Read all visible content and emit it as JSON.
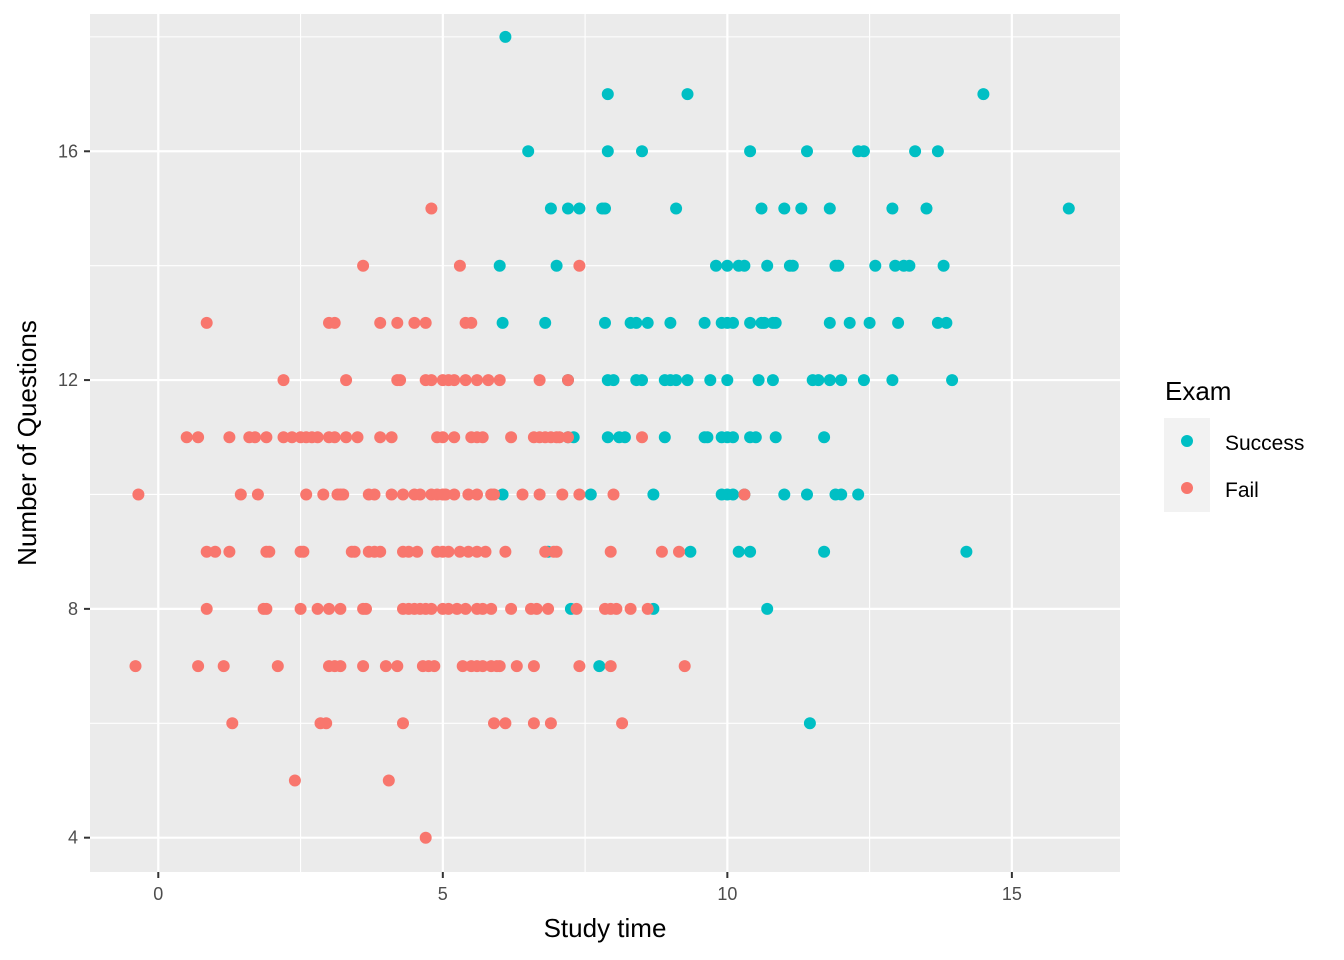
{
  "chart_data": {
    "type": "scatter",
    "xlabel": "Study time",
    "ylabel": "Number of Questions",
    "xlim": [
      -1.2,
      16.9
    ],
    "ylim": [
      3.4,
      18.4
    ],
    "x_ticks": [
      0,
      5,
      10,
      15
    ],
    "y_ticks": [
      4,
      8,
      12,
      16
    ],
    "grid": true,
    "legend": {
      "title": "Exam",
      "position": "right",
      "entries": [
        {
          "name": "Success",
          "color": "#00BFC4"
        },
        {
          "name": "Fail",
          "color": "#F8766D"
        }
      ]
    },
    "series": [
      {
        "name": "Success",
        "color": "#00BFC4",
        "points": [
          [
            6.1,
            18
          ],
          [
            7.9,
            17
          ],
          [
            9.3,
            17
          ],
          [
            14.5,
            17
          ],
          [
            6.5,
            16
          ],
          [
            7.9,
            16
          ],
          [
            8.5,
            16
          ],
          [
            10.4,
            16
          ],
          [
            11.4,
            16
          ],
          [
            12.3,
            16
          ],
          [
            12.4,
            16
          ],
          [
            13.3,
            16
          ],
          [
            13.7,
            16
          ],
          [
            6.9,
            15
          ],
          [
            7.2,
            15
          ],
          [
            7.4,
            15
          ],
          [
            7.8,
            15
          ],
          [
            7.85,
            15
          ],
          [
            9.1,
            15
          ],
          [
            10.6,
            15
          ],
          [
            11.0,
            15
          ],
          [
            11.3,
            15
          ],
          [
            11.8,
            15
          ],
          [
            12.9,
            15
          ],
          [
            13.5,
            15
          ],
          [
            16.0,
            15
          ],
          [
            6.0,
            14
          ],
          [
            7.0,
            14
          ],
          [
            9.8,
            14
          ],
          [
            10.0,
            14
          ],
          [
            10.2,
            14
          ],
          [
            10.3,
            14
          ],
          [
            10.7,
            14
          ],
          [
            11.1,
            14
          ],
          [
            11.15,
            14
          ],
          [
            11.9,
            14
          ],
          [
            11.95,
            14
          ],
          [
            12.6,
            14
          ],
          [
            12.95,
            14
          ],
          [
            13.1,
            14
          ],
          [
            13.2,
            14
          ],
          [
            13.8,
            14
          ],
          [
            6.05,
            13
          ],
          [
            6.8,
            13
          ],
          [
            7.85,
            13
          ],
          [
            8.3,
            13
          ],
          [
            8.4,
            13
          ],
          [
            8.6,
            13
          ],
          [
            9.0,
            13
          ],
          [
            9.6,
            13
          ],
          [
            9.9,
            13
          ],
          [
            10.0,
            13
          ],
          [
            10.1,
            13
          ],
          [
            10.4,
            13
          ],
          [
            10.6,
            13
          ],
          [
            10.65,
            13
          ],
          [
            10.8,
            13
          ],
          [
            10.85,
            13
          ],
          [
            11.8,
            13
          ],
          [
            12.15,
            13
          ],
          [
            12.5,
            13
          ],
          [
            13.0,
            13
          ],
          [
            13.7,
            13
          ],
          [
            13.85,
            13
          ],
          [
            7.2,
            12
          ],
          [
            7.9,
            12
          ],
          [
            8.0,
            12
          ],
          [
            8.4,
            12
          ],
          [
            8.5,
            12
          ],
          [
            8.9,
            12
          ],
          [
            9.0,
            12
          ],
          [
            9.1,
            12
          ],
          [
            9.3,
            12
          ],
          [
            9.7,
            12
          ],
          [
            10.0,
            12
          ],
          [
            10.55,
            12
          ],
          [
            10.8,
            12
          ],
          [
            11.5,
            12
          ],
          [
            11.6,
            12
          ],
          [
            11.8,
            12
          ],
          [
            12.0,
            12
          ],
          [
            12.4,
            12
          ],
          [
            12.9,
            12
          ],
          [
            13.95,
            12
          ],
          [
            7.2,
            11
          ],
          [
            7.3,
            11
          ],
          [
            7.9,
            11
          ],
          [
            8.1,
            11
          ],
          [
            8.2,
            11
          ],
          [
            8.9,
            11
          ],
          [
            9.6,
            11
          ],
          [
            9.65,
            11
          ],
          [
            9.9,
            11
          ],
          [
            10.0,
            11
          ],
          [
            10.1,
            11
          ],
          [
            10.4,
            11
          ],
          [
            10.5,
            11
          ],
          [
            10.85,
            11
          ],
          [
            11.7,
            11
          ],
          [
            6.05,
            10
          ],
          [
            7.6,
            10
          ],
          [
            8.7,
            10
          ],
          [
            9.9,
            10
          ],
          [
            10.0,
            10
          ],
          [
            10.1,
            10
          ],
          [
            10.3,
            10
          ],
          [
            11.0,
            10
          ],
          [
            11.4,
            10
          ],
          [
            11.9,
            10
          ],
          [
            12.0,
            10
          ],
          [
            12.3,
            10
          ],
          [
            6.85,
            9
          ],
          [
            9.35,
            9
          ],
          [
            10.2,
            9
          ],
          [
            10.4,
            9
          ],
          [
            11.7,
            9
          ],
          [
            14.2,
            9
          ],
          [
            7.25,
            8
          ],
          [
            8.7,
            8
          ],
          [
            10.7,
            8
          ],
          [
            7.75,
            7
          ],
          [
            11.45,
            6
          ]
        ]
      },
      {
        "name": "Fail",
        "color": "#F8766D",
        "points": [
          [
            4.8,
            15
          ],
          [
            3.6,
            14
          ],
          [
            5.3,
            14
          ],
          [
            7.4,
            14
          ],
          [
            0.85,
            13
          ],
          [
            3.0,
            13
          ],
          [
            3.1,
            13
          ],
          [
            3.9,
            13
          ],
          [
            4.2,
            13
          ],
          [
            4.5,
            13
          ],
          [
            4.7,
            13
          ],
          [
            5.4,
            13
          ],
          [
            5.5,
            13
          ],
          [
            2.2,
            12
          ],
          [
            3.3,
            12
          ],
          [
            4.2,
            12
          ],
          [
            4.25,
            12
          ],
          [
            4.7,
            12
          ],
          [
            4.8,
            12
          ],
          [
            5.0,
            12
          ],
          [
            5.1,
            12
          ],
          [
            5.2,
            12
          ],
          [
            5.4,
            12
          ],
          [
            5.6,
            12
          ],
          [
            5.8,
            12
          ],
          [
            6.0,
            12
          ],
          [
            6.7,
            12
          ],
          [
            7.2,
            12
          ],
          [
            0.5,
            11
          ],
          [
            0.7,
            11
          ],
          [
            1.25,
            11
          ],
          [
            1.6,
            11
          ],
          [
            1.7,
            11
          ],
          [
            1.9,
            11
          ],
          [
            2.2,
            11
          ],
          [
            2.35,
            11
          ],
          [
            2.5,
            11
          ],
          [
            2.6,
            11
          ],
          [
            2.7,
            11
          ],
          [
            2.8,
            11
          ],
          [
            3.0,
            11
          ],
          [
            3.1,
            11
          ],
          [
            3.3,
            11
          ],
          [
            3.5,
            11
          ],
          [
            3.9,
            11
          ],
          [
            4.1,
            11
          ],
          [
            4.9,
            11
          ],
          [
            5.0,
            11
          ],
          [
            5.2,
            11
          ],
          [
            5.5,
            11
          ],
          [
            5.6,
            11
          ],
          [
            5.7,
            11
          ],
          [
            6.2,
            11
          ],
          [
            6.6,
            11
          ],
          [
            6.7,
            11
          ],
          [
            6.8,
            11
          ],
          [
            6.9,
            11
          ],
          [
            7.0,
            11
          ],
          [
            7.05,
            11
          ],
          [
            7.2,
            11
          ],
          [
            8.5,
            11
          ],
          [
            -0.35,
            10
          ],
          [
            1.45,
            10
          ],
          [
            1.75,
            10
          ],
          [
            2.6,
            10
          ],
          [
            2.9,
            10
          ],
          [
            3.15,
            10
          ],
          [
            3.2,
            10
          ],
          [
            3.25,
            10
          ],
          [
            3.7,
            10
          ],
          [
            3.8,
            10
          ],
          [
            4.1,
            10
          ],
          [
            4.3,
            10
          ],
          [
            4.5,
            10
          ],
          [
            4.6,
            10
          ],
          [
            4.8,
            10
          ],
          [
            4.9,
            10
          ],
          [
            5.0,
            10
          ],
          [
            5.05,
            10
          ],
          [
            5.2,
            10
          ],
          [
            5.45,
            10
          ],
          [
            5.6,
            10
          ],
          [
            5.85,
            10
          ],
          [
            5.9,
            10
          ],
          [
            6.4,
            10
          ],
          [
            6.7,
            10
          ],
          [
            7.1,
            10
          ],
          [
            7.4,
            10
          ],
          [
            8.0,
            10
          ],
          [
            10.3,
            10
          ],
          [
            0.85,
            9
          ],
          [
            1.0,
            9
          ],
          [
            1.25,
            9
          ],
          [
            1.9,
            9
          ],
          [
            1.95,
            9
          ],
          [
            2.5,
            9
          ],
          [
            2.55,
            9
          ],
          [
            3.4,
            9
          ],
          [
            3.45,
            9
          ],
          [
            3.7,
            9
          ],
          [
            3.8,
            9
          ],
          [
            3.9,
            9
          ],
          [
            4.3,
            9
          ],
          [
            4.4,
            9
          ],
          [
            4.55,
            9
          ],
          [
            4.9,
            9
          ],
          [
            5.0,
            9
          ],
          [
            5.1,
            9
          ],
          [
            5.3,
            9
          ],
          [
            5.45,
            9
          ],
          [
            5.6,
            9
          ],
          [
            5.75,
            9
          ],
          [
            6.1,
            9
          ],
          [
            6.8,
            9
          ],
          [
            6.95,
            9
          ],
          [
            7.0,
            9
          ],
          [
            7.95,
            9
          ],
          [
            8.85,
            9
          ],
          [
            9.15,
            9
          ],
          [
            0.85,
            8
          ],
          [
            1.85,
            8
          ],
          [
            1.9,
            8
          ],
          [
            2.5,
            8
          ],
          [
            2.8,
            8
          ],
          [
            3.0,
            8
          ],
          [
            3.2,
            8
          ],
          [
            3.6,
            8
          ],
          [
            3.65,
            8
          ],
          [
            4.3,
            8
          ],
          [
            4.4,
            8
          ],
          [
            4.5,
            8
          ],
          [
            4.6,
            8
          ],
          [
            4.7,
            8
          ],
          [
            4.8,
            8
          ],
          [
            5.0,
            8
          ],
          [
            5.1,
            8
          ],
          [
            5.25,
            8
          ],
          [
            5.4,
            8
          ],
          [
            5.6,
            8
          ],
          [
            5.7,
            8
          ],
          [
            5.85,
            8
          ],
          [
            6.2,
            8
          ],
          [
            6.55,
            8
          ],
          [
            6.65,
            8
          ],
          [
            6.85,
            8
          ],
          [
            7.35,
            8
          ],
          [
            7.85,
            8
          ],
          [
            7.95,
            8
          ],
          [
            8.05,
            8
          ],
          [
            8.3,
            8
          ],
          [
            8.6,
            8
          ],
          [
            -0.4,
            7
          ],
          [
            0.7,
            7
          ],
          [
            1.15,
            7
          ],
          [
            2.1,
            7
          ],
          [
            3.0,
            7
          ],
          [
            3.1,
            7
          ],
          [
            3.2,
            7
          ],
          [
            3.6,
            7
          ],
          [
            4.0,
            7
          ],
          [
            4.2,
            7
          ],
          [
            4.65,
            7
          ],
          [
            4.75,
            7
          ],
          [
            4.85,
            7
          ],
          [
            5.35,
            7
          ],
          [
            5.5,
            7
          ],
          [
            5.6,
            7
          ],
          [
            5.7,
            7
          ],
          [
            5.85,
            7
          ],
          [
            5.95,
            7
          ],
          [
            6.0,
            7
          ],
          [
            6.3,
            7
          ],
          [
            6.6,
            7
          ],
          [
            7.4,
            7
          ],
          [
            7.95,
            7
          ],
          [
            9.25,
            7
          ],
          [
            1.3,
            6
          ],
          [
            2.85,
            6
          ],
          [
            2.95,
            6
          ],
          [
            4.3,
            6
          ],
          [
            5.9,
            6
          ],
          [
            6.1,
            6
          ],
          [
            6.6,
            6
          ],
          [
            6.9,
            6
          ],
          [
            8.15,
            6
          ],
          [
            2.4,
            5
          ],
          [
            4.05,
            5
          ],
          [
            4.7,
            4
          ]
        ]
      }
    ]
  }
}
